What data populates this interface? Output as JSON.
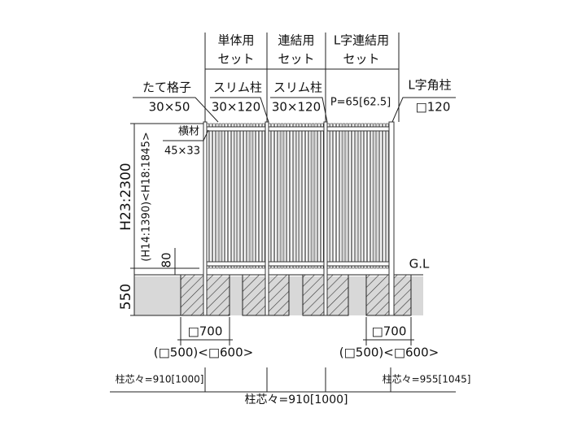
{
  "sets": [
    {
      "name": "単体用",
      "unit": "セット"
    },
    {
      "name": "連結用",
      "unit": "セット"
    },
    {
      "name": "L字連結用",
      "unit": "セット"
    }
  ],
  "callouts": [
    {
      "label": "たて格子",
      "size": "30×50"
    },
    {
      "label": "スリム柱",
      "size": "30×120"
    },
    {
      "label": "スリム柱",
      "size": "30×120"
    },
    {
      "label": "L字角柱",
      "size": "□120"
    },
    {
      "label": "横材",
      "size": "45×33"
    }
  ],
  "pitch": "P=65[62.5]",
  "height": {
    "main": "H23:2300",
    "alt": "(H14:1390)<H18:1845>",
    "gap": "80",
    "foundation": "550"
  },
  "ground": "G.L",
  "footings": [
    {
      "size": "□700",
      "alt": "(□500)<□600>"
    },
    {
      "size": "□700",
      "alt": "(□500)<□600>"
    }
  ],
  "spans": [
    {
      "label": "柱芯々=910[1000]"
    },
    {
      "label": "柱芯々=955[1045]"
    },
    {
      "label": "柱芯々=910[1000]"
    }
  ]
}
